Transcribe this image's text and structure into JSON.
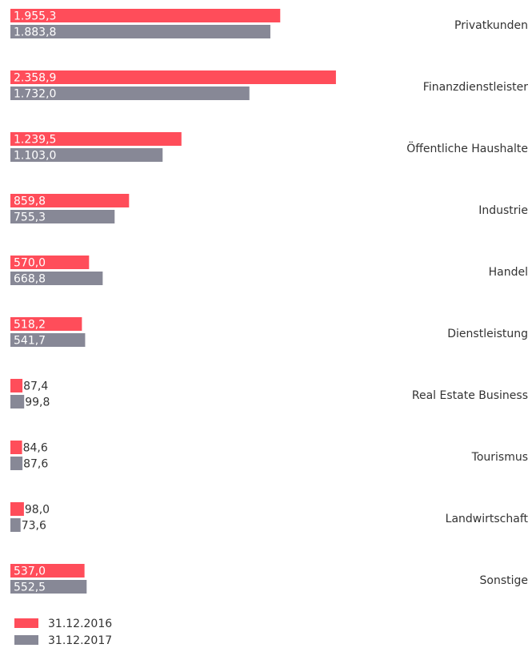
{
  "chart_data": {
    "type": "barh",
    "categories": [
      "Privatkunden",
      "Finanzdienstleister",
      "Öffentliche Haushalte",
      "Industrie",
      "Handel",
      "Dienstleistung",
      "Real Estate Business",
      "Tourismus",
      "Landwirtschaft",
      "Sonstige"
    ],
    "series": [
      {
        "name": "31.12.2016",
        "color": "#ff4d5a",
        "values": [
          1955.3,
          2358.9,
          1239.5,
          859.8,
          570.0,
          518.2,
          87.4,
          84.6,
          98.0,
          537.0
        ],
        "value_labels": [
          "1.955,3",
          "2.358,9",
          "1.239,5",
          "859,8",
          "570,0",
          "518,2",
          "87,4",
          "84,6",
          "98,0",
          "537,0"
        ]
      },
      {
        "name": "31.12.2017",
        "color": "#878896",
        "values": [
          1883.8,
          1732.0,
          1103.0,
          755.3,
          668.8,
          541.7,
          99.8,
          87.6,
          73.6,
          552.5
        ],
        "value_labels": [
          "1.883,8",
          "1.732,0",
          "1.103,0",
          "755,3",
          "668,8",
          "541,7",
          "99,8",
          "87,6",
          "73,6",
          "552,5"
        ]
      }
    ],
    "legend": "bottom-left"
  }
}
